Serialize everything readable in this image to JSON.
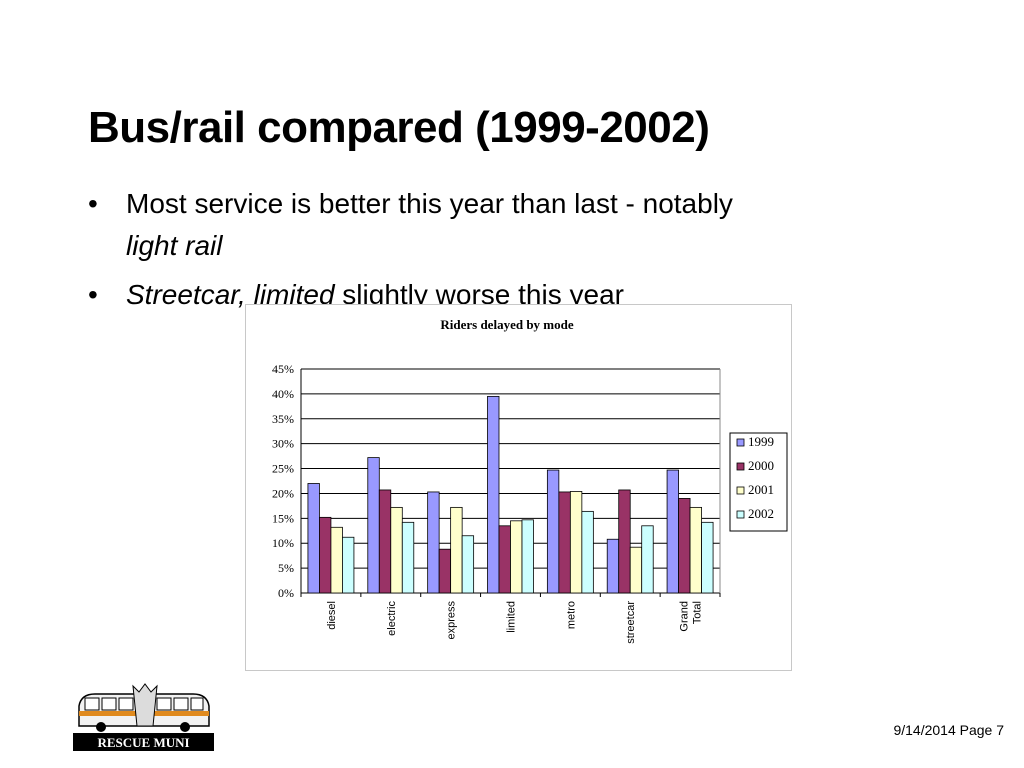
{
  "slide": {
    "title": "Bus/rail compared (1999-2002)",
    "bullets": [
      {
        "marker": "•",
        "text_plain": "Most service is better this year than last - notably",
        "text_italic": "light rail"
      },
      {
        "marker": "•",
        "text_italic": "Streetcar, limited",
        "text_plain": " slightly worse this year"
      }
    ],
    "footer": "9/14/2014 Page 7",
    "logo_text": "RESCUE MUNI"
  },
  "chart_data": {
    "type": "bar",
    "title": "Riders delayed by mode",
    "categories": [
      "diesel",
      "electric",
      "express",
      "limited",
      "metro",
      "streetcar",
      "Grand Total"
    ],
    "category_labels": [
      [
        "diesel"
      ],
      [
        "electric"
      ],
      [
        "express"
      ],
      [
        "limited"
      ],
      [
        "metro"
      ],
      [
        "streetcar"
      ],
      [
        "Grand",
        "Total"
      ]
    ],
    "series": [
      {
        "name": "1999",
        "color": "#9999ff",
        "values": [
          22,
          27.2,
          20.3,
          39.5,
          24.7,
          10.8,
          24.7
        ]
      },
      {
        "name": "2000",
        "color": "#993366",
        "values": [
          15.2,
          20.7,
          8.8,
          13.5,
          20.3,
          20.7,
          19.0
        ]
      },
      {
        "name": "2001",
        "color": "#ffffcc",
        "values": [
          13.2,
          17.2,
          17.2,
          14.5,
          20.4,
          9.2,
          17.2
        ]
      },
      {
        "name": "2002",
        "color": "#ccffff",
        "values": [
          11.2,
          14.2,
          11.5,
          14.7,
          16.4,
          13.5,
          14.2
        ]
      }
    ],
    "ylim": [
      0,
      45
    ],
    "yticks": [
      "0%",
      "5%",
      "10%",
      "15%",
      "20%",
      "25%",
      "30%",
      "35%",
      "40%",
      "45%"
    ],
    "legend": "right",
    "grid": true
  }
}
